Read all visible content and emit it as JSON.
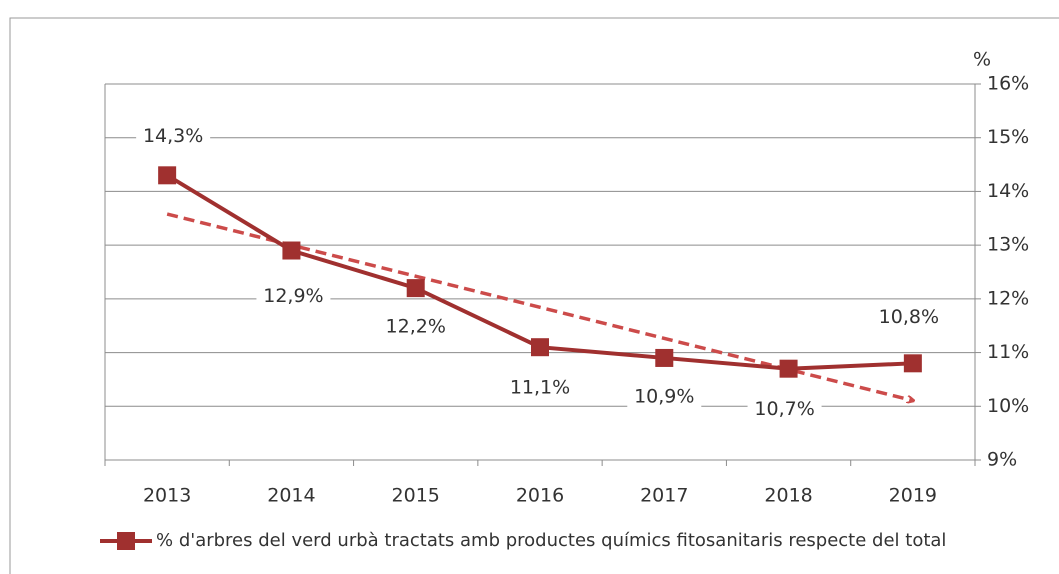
{
  "chart_data": {
    "type": "line",
    "y_unit": "%",
    "categories": [
      "2013",
      "2014",
      "2015",
      "2016",
      "2017",
      "2018",
      "2019"
    ],
    "series": [
      {
        "name": "% d'arbres del verd urbà tractats amb productes químics fitosanitaris respecte del total",
        "color": "#a0302f",
        "values": [
          14.3,
          12.9,
          12.2,
          11.1,
          10.9,
          10.7,
          10.8
        ],
        "value_labels": [
          "14,3%",
          "12,9%",
          "12,2%",
          "11,1%",
          "10,9%",
          "10,7%",
          "10,8%"
        ]
      }
    ],
    "trendline": {
      "type": "linear",
      "color": "#cc4b4a"
    },
    "ylim": [
      9,
      16
    ],
    "yticks": [
      {
        "value": 9,
        "label": "9%"
      },
      {
        "value": 10,
        "label": "10%"
      },
      {
        "value": 11,
        "label": "11%"
      },
      {
        "value": 12,
        "label": "12%"
      },
      {
        "value": 13,
        "label": "13%"
      },
      {
        "value": 14,
        "label": "14%"
      },
      {
        "value": 15,
        "label": "15%"
      },
      {
        "value": 16,
        "label": "16%"
      }
    ],
    "grid": true
  }
}
